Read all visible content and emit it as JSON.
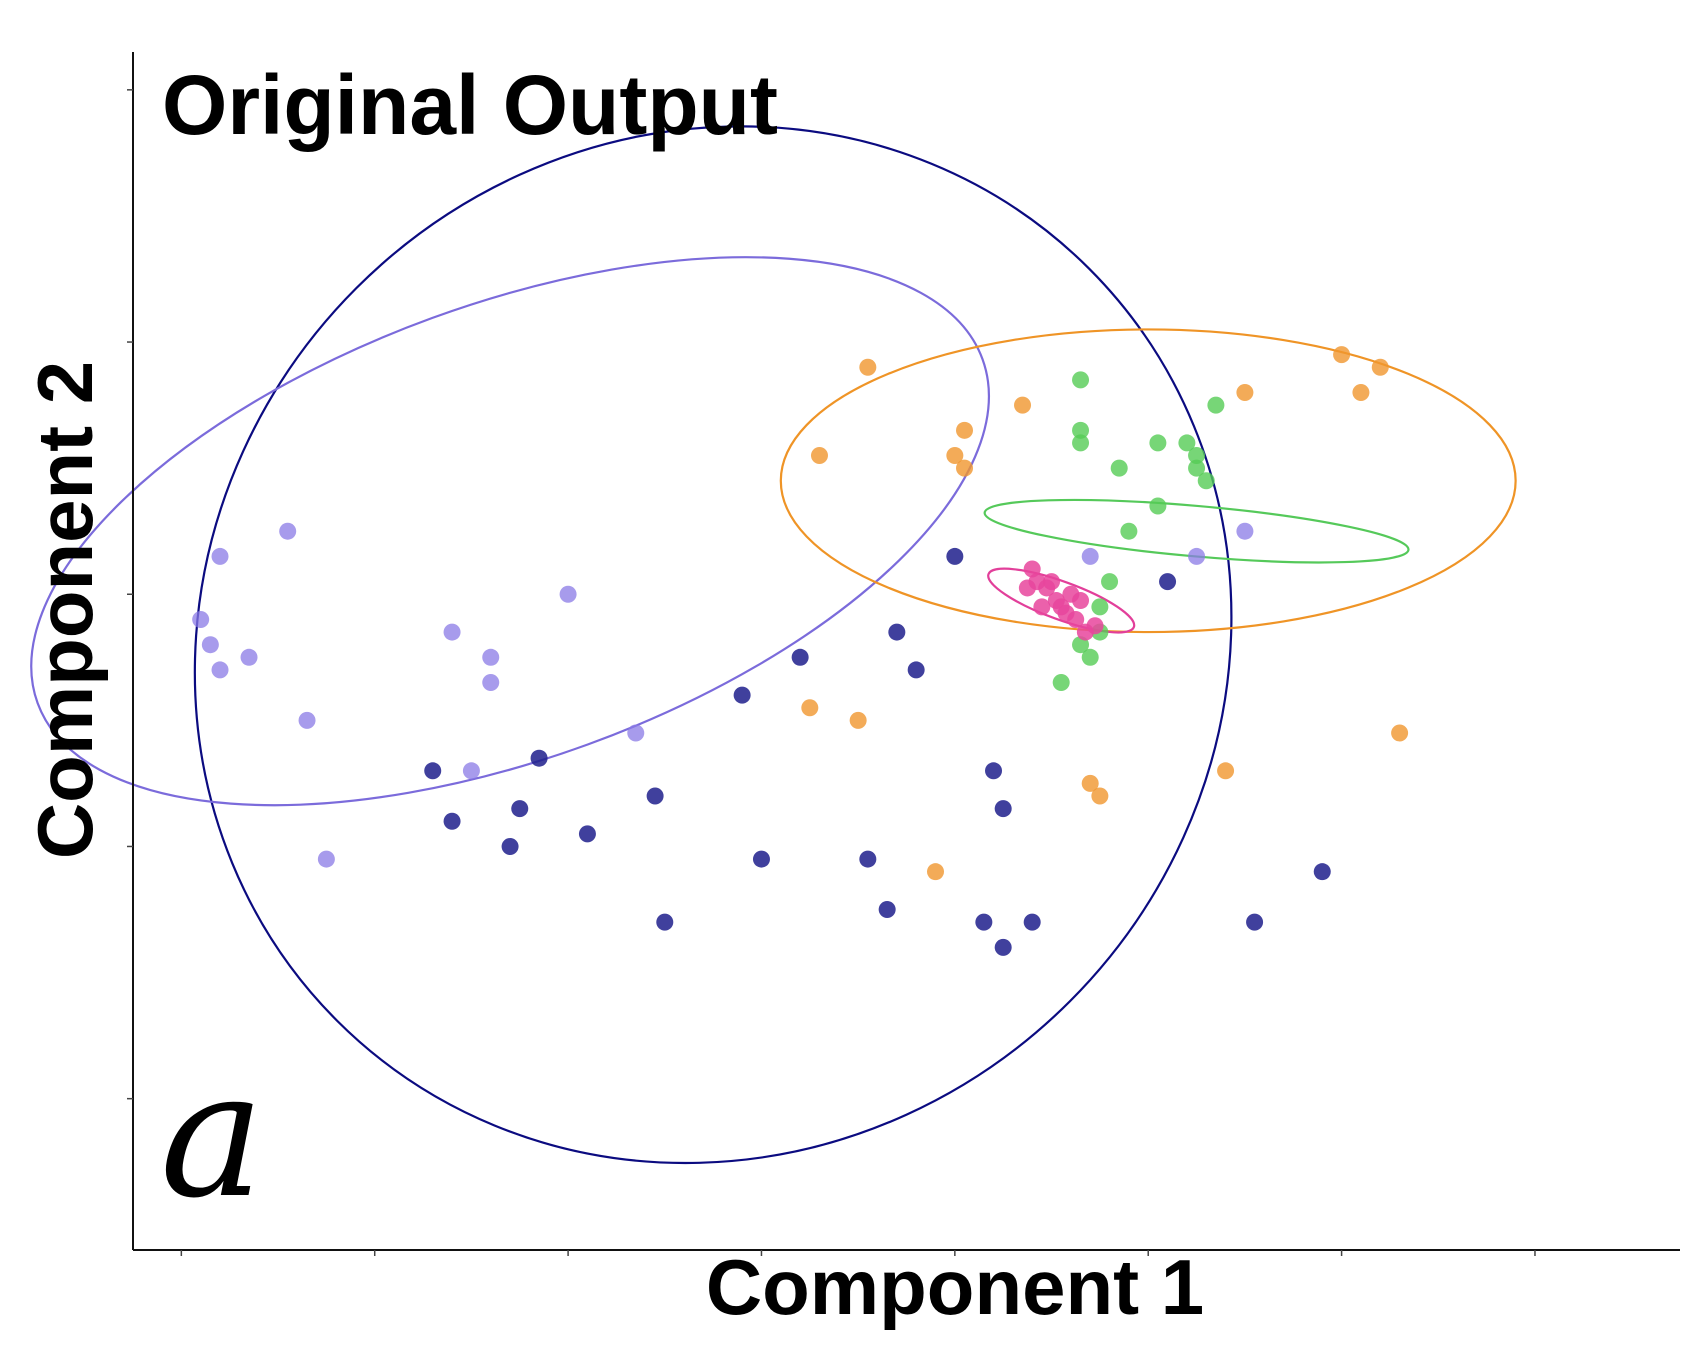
{
  "chart_data": {
    "type": "scatter",
    "title": "Original Output",
    "panel_label": "a",
    "xlabel": "Component 1",
    "ylabel": "Component 2",
    "xlim": [
      -1.5,
      14.5
    ],
    "ylim": [
      -5.2,
      4.3
    ],
    "grid": false,
    "legend": "none",
    "x_ticks": [
      -1,
      1,
      3,
      5,
      7,
      9,
      11,
      13
    ],
    "y_ticks": [
      -4,
      -2,
      0,
      2,
      4
    ],
    "series": [
      {
        "color": "#1f1f8c",
        "alpha": 0.85,
        "points": [
          [
            7.0,
            0.3
          ],
          [
            5.4,
            -0.5
          ],
          [
            4.8,
            -0.8
          ],
          [
            3.9,
            -1.6
          ],
          [
            3.2,
            -1.9
          ],
          [
            2.7,
            -1.3
          ],
          [
            2.5,
            -1.7
          ],
          [
            2.4,
            -2.0
          ],
          [
            1.6,
            -1.4
          ],
          [
            1.8,
            -1.8
          ],
          [
            4.0,
            -2.6
          ],
          [
            5.0,
            -2.1
          ],
          [
            6.3,
            -2.5
          ],
          [
            6.1,
            -2.1
          ],
          [
            7.3,
            -2.6
          ],
          [
            7.5,
            -2.8
          ],
          [
            7.8,
            -2.6
          ],
          [
            10.1,
            -2.6
          ],
          [
            10.8,
            -2.2
          ],
          [
            7.4,
            -1.4
          ],
          [
            7.5,
            -1.7
          ],
          [
            6.4,
            -0.3
          ],
          [
            6.6,
            -0.6
          ],
          [
            9.2,
            0.1
          ]
        ]
      },
      {
        "color": "#8a7ae6",
        "alpha": 0.75,
        "points": [
          [
            8.4,
            0.3
          ],
          [
            9.5,
            0.3
          ],
          [
            10.0,
            0.5
          ],
          [
            3.0,
            0.0
          ],
          [
            2.2,
            -0.5
          ],
          [
            0.5,
            -2.1
          ],
          [
            0.3,
            -1.0
          ],
          [
            -0.3,
            -0.5
          ],
          [
            0.1,
            0.5
          ],
          [
            -0.6,
            0.3
          ],
          [
            -0.8,
            -0.2
          ],
          [
            -0.7,
            -0.4
          ],
          [
            -0.6,
            -0.6
          ],
          [
            1.8,
            -0.3
          ],
          [
            2.2,
            -0.7
          ],
          [
            2.0,
            -1.4
          ],
          [
            3.7,
            -1.1
          ]
        ]
      },
      {
        "color": "#f0962e",
        "alpha": 0.8,
        "points": [
          [
            11.0,
            1.9
          ],
          [
            10.0,
            1.6
          ],
          [
            11.2,
            1.6
          ],
          [
            11.4,
            1.8
          ],
          [
            6.1,
            1.8
          ],
          [
            7.0,
            1.1
          ],
          [
            7.1,
            1.0
          ],
          [
            7.1,
            1.3
          ],
          [
            7.7,
            1.5
          ],
          [
            5.6,
            1.1
          ],
          [
            5.5,
            -0.9
          ],
          [
            6.0,
            -1.0
          ],
          [
            6.8,
            -2.2
          ],
          [
            8.4,
            -1.5
          ],
          [
            8.5,
            -1.6
          ],
          [
            9.8,
            -1.4
          ],
          [
            11.6,
            -1.1
          ]
        ]
      },
      {
        "color": "#55cc55",
        "alpha": 0.8,
        "points": [
          [
            8.3,
            1.7
          ],
          [
            9.7,
            1.5
          ],
          [
            8.3,
            1.3
          ],
          [
            8.3,
            1.2
          ],
          [
            9.1,
            1.2
          ],
          [
            8.7,
            1.0
          ],
          [
            9.4,
            1.2
          ],
          [
            9.5,
            1.0
          ],
          [
            9.5,
            1.1
          ],
          [
            9.6,
            0.9
          ],
          [
            9.1,
            0.7
          ],
          [
            8.8,
            0.5
          ],
          [
            8.6,
            0.1
          ],
          [
            8.5,
            -0.1
          ],
          [
            8.5,
            -0.3
          ],
          [
            8.4,
            -0.5
          ],
          [
            8.3,
            -0.4
          ],
          [
            8.1,
            -0.7
          ]
        ]
      },
      {
        "color": "#e8459c",
        "alpha": 0.85,
        "points": [
          [
            7.8,
            0.2
          ],
          [
            7.85,
            0.1
          ],
          [
            7.95,
            0.05
          ],
          [
            8.05,
            -0.05
          ],
          [
            8.1,
            -0.1
          ],
          [
            8.15,
            -0.15
          ],
          [
            8.25,
            -0.2
          ],
          [
            7.9,
            -0.1
          ],
          [
            8.2,
            0.0
          ],
          [
            8.45,
            -0.25
          ],
          [
            8.35,
            -0.3
          ],
          [
            8.0,
            0.1
          ],
          [
            7.75,
            0.05
          ],
          [
            8.3,
            -0.05
          ]
        ]
      }
    ],
    "ellipses": [
      {
        "color": "#0b0b80",
        "cx": 4.5,
        "cy": -0.4,
        "rx": 5.5,
        "ry": 4.0,
        "angle_deg": 45
      },
      {
        "color": "#7b6bdb",
        "cx": 2.4,
        "cy": 0.5,
        "rx": 5.2,
        "ry": 1.8,
        "angle_deg": 20
      },
      {
        "color": "#ef9426",
        "cx": 9.0,
        "cy": 0.9,
        "rx": 3.8,
        "ry": 1.2,
        "angle_deg": 0
      },
      {
        "color": "#55c95a",
        "cx": 9.5,
        "cy": 0.5,
        "rx": 2.2,
        "ry": 0.2,
        "angle_deg": -5
      },
      {
        "color": "#e23f9a",
        "cx": 8.1,
        "cy": -0.05,
        "rx": 0.8,
        "ry": 0.15,
        "angle_deg": -20
      }
    ]
  }
}
